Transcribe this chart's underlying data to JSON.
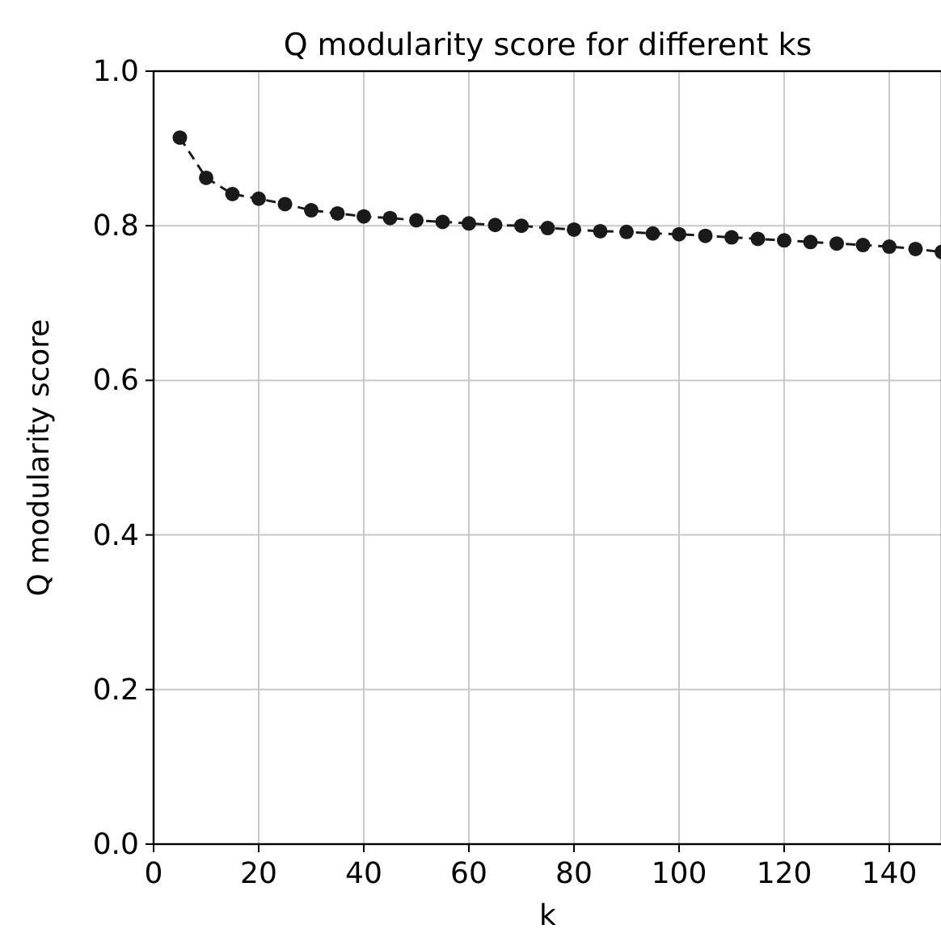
{
  "chart_data": {
    "type": "line",
    "title": "Q modularity score for different ks",
    "xlabel": "k",
    "ylabel": "Q modularity score",
    "x": [
      5,
      10,
      15,
      20,
      25,
      30,
      35,
      40,
      45,
      50,
      55,
      60,
      65,
      70,
      75,
      80,
      85,
      90,
      95,
      100,
      105,
      110,
      115,
      120,
      125,
      130,
      135,
      140,
      145,
      150
    ],
    "series": [
      {
        "color": "#1a1a1a",
        "values": [
          0.914,
          0.862,
          0.841,
          0.835,
          0.828,
          0.82,
          0.816,
          0.812,
          0.81,
          0.807,
          0.805,
          0.803,
          0.801,
          0.8,
          0.797,
          0.795,
          0.793,
          0.792,
          0.79,
          0.789,
          0.787,
          0.785,
          0.783,
          0.781,
          0.779,
          0.777,
          0.775,
          0.773,
          0.77,
          0.766
        ]
      }
    ],
    "xlim": [
      0,
      150
    ],
    "xticks": [
      0,
      20,
      40,
      60,
      80,
      100,
      120,
      140
    ],
    "ylim": [
      0,
      1
    ],
    "yticks": [
      {
        "value": 0,
        "label": "0.0"
      },
      {
        "value": 0.2,
        "label": "0.2"
      },
      {
        "value": 0.4,
        "label": "0.4"
      },
      {
        "value": 0.6,
        "label": "0.6"
      },
      {
        "value": 0.8,
        "label": "0.8"
      },
      {
        "value": 1,
        "label": "1.0"
      }
    ],
    "grid": true,
    "marker": "circle",
    "line_style": "dashed"
  }
}
